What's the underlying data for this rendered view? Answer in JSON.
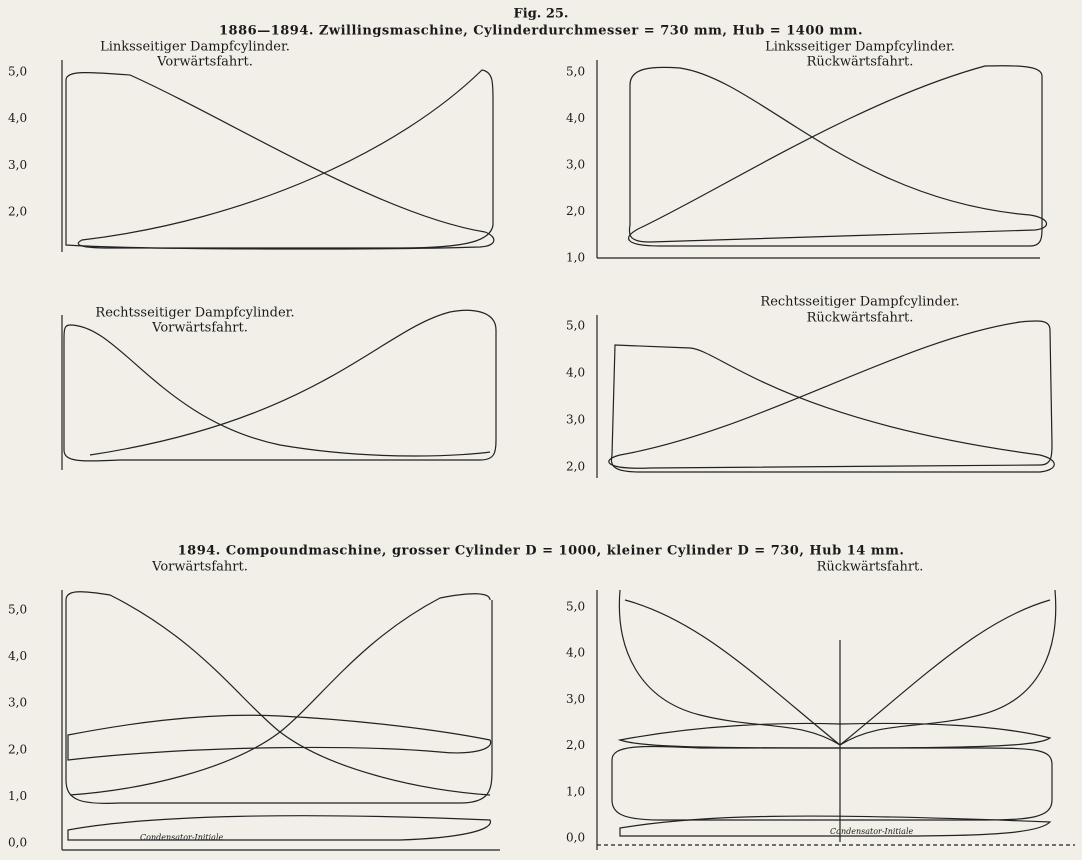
{
  "figure_label": "Fig. 25.",
  "sections": [
    {
      "title": "1886—1894. Zwillingsmaschine, Cylinderdurchmesser = 730 mm, Hub = 1400 mm."
    },
    {
      "title": "1894. Compoundmaschine, grosser Cylinder D = 1000, kleiner Cylinder D = 730, Hub 14 mm."
    }
  ],
  "panels": [
    {
      "title": "Linksseitiger Dampfcylinder.",
      "subtitle": "Vorwärtsfahrt.",
      "ticks": [
        "5,0",
        "4,0",
        "3,0",
        "2,0"
      ]
    },
    {
      "title": "Linksseitiger Dampfcylinder.",
      "subtitle": "Rückwärtsfahrt.",
      "ticks": [
        "5,0",
        "4,0",
        "3,0",
        "2,0",
        "1,0"
      ]
    },
    {
      "title": "Rechtsseitiger Dampfcylinder.",
      "subtitle": "Vorwärtsfahrt.",
      "ticks": []
    },
    {
      "title": "Rechtsseitiger Dampfcylinder.",
      "subtitle": "Rückwärtsfahrt.",
      "ticks": [
        "5,0",
        "4,0",
        "3,0",
        "2,0"
      ]
    },
    {
      "subtitle": "Vorwärtsfahrt.",
      "ticks": [
        "5,0",
        "4,0",
        "3,0",
        "2,0",
        "1,0",
        "0,0"
      ],
      "annotation": "Condensator-Initiale"
    },
    {
      "subtitle": "Rückwärtsfahrt.",
      "ticks": [
        "5,0",
        "4,0",
        "3,0",
        "2,0",
        "1,0",
        "0,0"
      ],
      "annotation": "Condensator-Initiale"
    }
  ]
}
